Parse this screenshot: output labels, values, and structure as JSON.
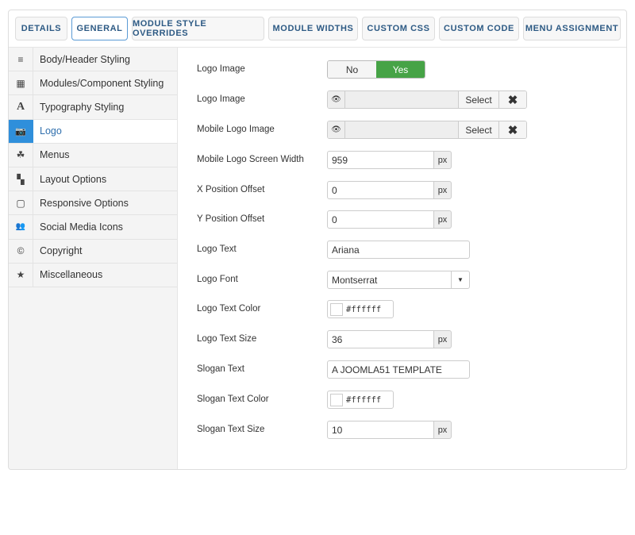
{
  "tabs": [
    "DETAILS",
    "GENERAL",
    "MODULE STYLE OVERRIDES",
    "MODULE WIDTHS",
    "CUSTOM CSS",
    "CUSTOM CODE",
    "MENU ASSIGNMENT"
  ],
  "active_tab": "GENERAL",
  "sidebar": {
    "items": [
      {
        "label": "Body/Header Styling",
        "icon": "≡"
      },
      {
        "label": "Modules/Component Styling",
        "icon": "▦"
      },
      {
        "label": "Typography Styling",
        "icon": "A"
      },
      {
        "label": "Logo",
        "icon": "📷"
      },
      {
        "label": "Menus",
        "icon": "☘"
      },
      {
        "label": "Layout Options",
        "icon": "▚"
      },
      {
        "label": "Responsive Options",
        "icon": "▢"
      },
      {
        "label": "Social Media Icons",
        "icon": "👥"
      },
      {
        "label": "Copyright",
        "icon": "©"
      },
      {
        "label": "Miscellaneous",
        "icon": "★"
      }
    ],
    "active": "Logo"
  },
  "form": {
    "logo_image_toggle": {
      "label": "Logo Image",
      "no": "No",
      "yes": "Yes",
      "value": "Yes"
    },
    "logo_image": {
      "label": "Logo Image",
      "select": "Select",
      "clear": "✖",
      "eye": "👁",
      "value": ""
    },
    "mobile_logo_image": {
      "label": "Mobile Logo Image",
      "select": "Select",
      "clear": "✖",
      "eye": "👁",
      "value": ""
    },
    "mobile_logo_screen_width": {
      "label": "Mobile Logo Screen Width",
      "value": "959",
      "unit": "px"
    },
    "x_position_offset": {
      "label": "X Position Offset",
      "value": "0",
      "unit": "px"
    },
    "y_position_offset": {
      "label": "Y Position Offset",
      "value": "0",
      "unit": "px"
    },
    "logo_text": {
      "label": "Logo Text",
      "value": "Ariana"
    },
    "logo_font": {
      "label": "Logo Font",
      "value": "Montserrat"
    },
    "logo_text_color": {
      "label": "Logo Text Color",
      "value": "#ffffff"
    },
    "logo_text_size": {
      "label": "Logo Text Size",
      "value": "36",
      "unit": "px"
    },
    "slogan_text": {
      "label": "Slogan Text",
      "value": "A JOOMLA51 TEMPLATE"
    },
    "slogan_text_color": {
      "label": "Slogan Text Color",
      "value": "#ffffff"
    },
    "slogan_text_size": {
      "label": "Slogan Text Size",
      "value": "10",
      "unit": "px"
    }
  },
  "colors": {
    "accent": "#2f8fdb",
    "yes": "#46a346",
    "tab_text": "#2d5a84"
  }
}
